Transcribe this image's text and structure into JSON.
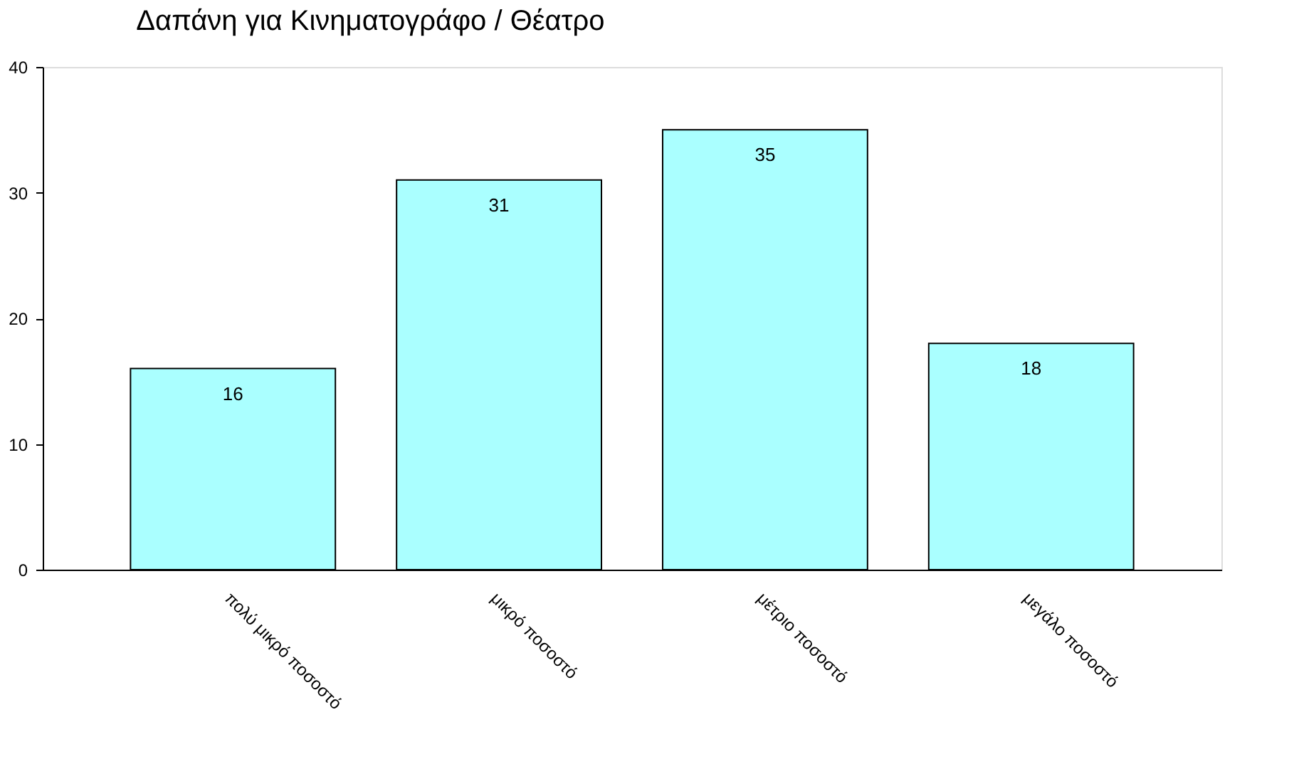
{
  "chart_data": {
    "type": "bar",
    "title": "Δαπάνη για Κινηματογράφο / Θέατρο",
    "categories": [
      "πολύ μικρό ποσοστό",
      "μικρό ποσοστό",
      "μέτριο ποσοστό",
      "μεγάλο ποσοστό"
    ],
    "values": [
      16,
      31,
      35,
      18
    ],
    "color": "#aaffff",
    "ylim": [
      0,
      40
    ],
    "yticks": [
      0,
      10,
      20,
      30,
      40
    ],
    "grid": false,
    "data_labels": true
  }
}
